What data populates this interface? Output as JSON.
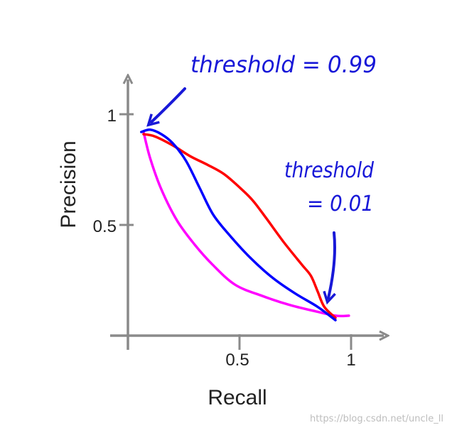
{
  "chart_data": {
    "type": "line",
    "xlabel": "Recall",
    "ylabel": "Precision",
    "xlim": [
      0,
      1
    ],
    "ylim": [
      0,
      1
    ],
    "x_ticks": [
      {
        "value": 0.5,
        "label": "0.5"
      },
      {
        "value": 1,
        "label": "1"
      }
    ],
    "y_ticks": [
      {
        "value": 0.5,
        "label": "0.5"
      },
      {
        "value": 1,
        "label": "1"
      }
    ],
    "grid": false,
    "series": [
      {
        "color": "#ff00ff",
        "x": [
          0.07,
          0.1,
          0.15,
          0.22,
          0.3,
          0.38,
          0.48,
          0.6,
          0.72,
          0.84,
          0.93,
          0.99
        ],
        "y": [
          0.92,
          0.8,
          0.66,
          0.52,
          0.41,
          0.32,
          0.23,
          0.18,
          0.14,
          0.11,
          0.09,
          0.09
        ]
      },
      {
        "color": "#ff0000",
        "x": [
          0.07,
          0.12,
          0.2,
          0.28,
          0.36,
          0.43,
          0.5,
          0.56,
          0.62,
          0.7,
          0.78,
          0.82,
          0.85,
          0.88,
          0.93
        ],
        "y": [
          0.91,
          0.9,
          0.86,
          0.81,
          0.77,
          0.73,
          0.67,
          0.61,
          0.53,
          0.42,
          0.32,
          0.27,
          0.2,
          0.13,
          0.08
        ]
      },
      {
        "color": "#0000ff",
        "x": [
          0.06,
          0.1,
          0.15,
          0.2,
          0.26,
          0.32,
          0.38,
          0.45,
          0.55,
          0.65,
          0.75,
          0.85,
          0.93
        ],
        "y": [
          0.92,
          0.93,
          0.91,
          0.87,
          0.79,
          0.67,
          0.55,
          0.46,
          0.35,
          0.26,
          0.19,
          0.13,
          0.07
        ]
      }
    ],
    "annotations": [
      {
        "text": "threshold = 0.99",
        "at": [
          0.08,
          0.95
        ],
        "color": "#1818d8"
      },
      {
        "text": "threshold",
        "at": [
          0.9,
          0.1
        ],
        "color": "#1818d8"
      },
      {
        "text": "= 0.01",
        "color": "#1818d8"
      }
    ]
  },
  "watermark": "https://blog.csdn.net/uncle_ll"
}
